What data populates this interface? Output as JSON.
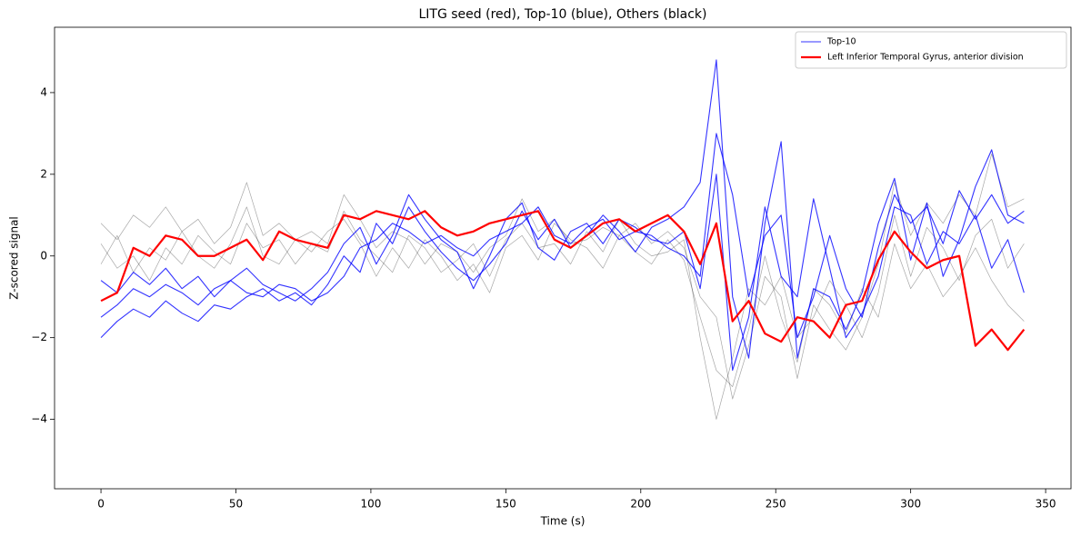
{
  "chart_data": {
    "type": "line",
    "title": "LITG seed (red), Top-10 (blue), Others (black)",
    "xlabel": "Time (s)",
    "ylabel": "Z-scored signal",
    "xlim": [
      -17.2,
      359.4
    ],
    "ylim": [
      -5.7,
      5.6
    ],
    "xticks": [
      0,
      50,
      100,
      150,
      200,
      250,
      300,
      350
    ],
    "yticks": [
      {
        "value": -4,
        "label": "−4"
      },
      {
        "value": -2,
        "label": "−2"
      },
      0,
      2,
      4
    ],
    "legend": "upper right",
    "x": [
      0,
      6,
      12,
      18,
      24,
      30,
      36,
      42,
      48,
      54,
      60,
      66,
      72,
      78,
      84,
      90,
      96,
      102,
      108,
      114,
      120,
      126,
      132,
      138,
      144,
      150,
      156,
      162,
      168,
      174,
      180,
      186,
      192,
      198,
      204,
      210,
      216,
      222,
      228,
      234,
      240,
      246,
      252,
      258,
      264,
      270,
      276,
      282,
      288,
      294,
      300,
      306,
      312,
      318,
      324,
      330,
      336,
      342
    ],
    "series": [
      {
        "color": "rgba(0,0,0,0.35)",
        "linewidth": 0.7,
        "values": [
          0.8,
          0.4,
          1.0,
          0.7,
          1.2,
          0.6,
          0.9,
          0.3,
          0.7,
          1.8,
          0.5,
          0.8,
          0.4,
          0.6,
          0.3,
          1.5,
          0.9,
          0.2,
          0.6,
          0.4,
          -0.2,
          0.3,
          0.1,
          -0.4,
          0.2,
          0.5,
          1.4,
          0.6,
          0.9,
          0.3,
          0.4,
          0.7,
          0.5,
          0.8,
          0.3,
          0.6,
          0.2,
          -1.0,
          -1.5,
          -3.5,
          -2.2,
          -0.5,
          -1.0,
          -3.0,
          -1.2,
          -1.8,
          -2.3,
          -1.5,
          -0.2,
          1.8,
          0.5,
          1.3,
          0.8,
          1.5,
          1.0,
          2.5,
          1.2,
          1.4
        ]
      },
      {
        "color": "rgba(0,0,0,0.35)",
        "linewidth": 0.7,
        "values": [
          -0.2,
          0.5,
          -0.4,
          0.2,
          -0.1,
          0.6,
          0.0,
          -0.3,
          0.3,
          1.2,
          0.0,
          -0.2,
          0.4,
          0.1,
          0.6,
          0.9,
          0.3,
          -0.5,
          0.2,
          -0.3,
          0.4,
          0.0,
          -0.6,
          -0.2,
          -0.9,
          0.2,
          0.5,
          -0.1,
          0.8,
          0.4,
          0.2,
          -0.3,
          0.5,
          0.1,
          -0.2,
          0.4,
          -0.1,
          -1.5,
          -2.8,
          -3.2,
          -1.8,
          0.0,
          -1.5,
          -2.6,
          -0.8,
          -1.2,
          -1.9,
          -0.8,
          -1.5,
          0.3,
          -0.8,
          -0.2,
          -1.0,
          -0.5,
          0.2,
          -0.6,
          -1.2,
          -1.6
        ]
      },
      {
        "color": "rgba(0,0,0,0.35)",
        "linewidth": 0.7,
        "values": [
          0.3,
          -0.3,
          0.0,
          -0.6,
          0.2,
          -0.2,
          0.5,
          0.1,
          -0.2,
          0.8,
          0.2,
          0.4,
          -0.2,
          0.3,
          0.1,
          1.1,
          0.4,
          0.0,
          -0.4,
          0.5,
          0.2,
          -0.4,
          -0.1,
          0.3,
          -0.5,
          0.4,
          0.8,
          0.2,
          0.3,
          -0.2,
          0.6,
          0.1,
          0.9,
          0.3,
          0.0,
          0.1,
          0.4,
          -2.0,
          -4.0,
          -2.5,
          -0.8,
          -1.2,
          -0.5,
          -2.0,
          -1.5,
          -0.6,
          -1.2,
          -2.0,
          -0.9,
          1.0,
          -0.5,
          0.7,
          0.2,
          -0.6,
          0.5,
          0.9,
          -0.3,
          0.3
        ]
      },
      {
        "name": "Top-10",
        "color": "rgba(0,0,255,0.8)",
        "linewidth": 1.1,
        "values": [
          -1.5,
          -1.2,
          -0.8,
          -1.0,
          -0.7,
          -0.9,
          -1.2,
          -0.8,
          -0.6,
          -0.9,
          -1.0,
          -0.7,
          -0.8,
          -1.1,
          -0.9,
          -0.5,
          0.2,
          0.4,
          0.8,
          0.6,
          0.3,
          0.5,
          0.2,
          0.0,
          0.4,
          0.6,
          0.8,
          1.2,
          0.5,
          0.3,
          0.7,
          0.9,
          0.4,
          0.6,
          0.5,
          0.2,
          0.0,
          -0.5,
          3.0,
          1.5,
          -1.0,
          0.5,
          1.0,
          -2.0,
          -1.0,
          0.5,
          -0.8,
          -1.5,
          0.2,
          1.5,
          0.8,
          1.2,
          0.3,
          1.6,
          0.9,
          1.5,
          0.8,
          1.1
        ]
      },
      {
        "color": "rgba(0,0,255,0.8)",
        "linewidth": 1.1,
        "values": [
          -2.0,
          -1.6,
          -1.3,
          -1.5,
          -1.1,
          -1.4,
          -1.6,
          -1.2,
          -1.3,
          -1.0,
          -0.8,
          -1.1,
          -0.9,
          -1.2,
          -0.7,
          0.0,
          -0.4,
          0.8,
          0.3,
          1.2,
          0.6,
          0.1,
          -0.3,
          -0.6,
          -0.2,
          0.3,
          1.1,
          0.4,
          0.9,
          0.2,
          0.5,
          1.0,
          0.6,
          0.1,
          0.7,
          0.9,
          1.2,
          1.8,
          4.8,
          -1.0,
          -2.5,
          0.8,
          2.8,
          -2.5,
          -0.8,
          -1.0,
          -1.8,
          -0.9,
          0.8,
          1.9,
          -0.1,
          1.3,
          -0.5,
          0.4,
          1.7,
          2.6,
          1.0,
          0.8
        ]
      },
      {
        "color": "rgba(0,0,255,0.8)",
        "linewidth": 1.1,
        "values": [
          -0.6,
          -0.9,
          -0.4,
          -0.7,
          -0.3,
          -0.8,
          -0.5,
          -1.0,
          -0.6,
          -0.3,
          -0.7,
          -0.9,
          -1.1,
          -0.8,
          -0.4,
          0.3,
          0.7,
          -0.2,
          0.5,
          1.5,
          0.9,
          0.4,
          0.1,
          -0.8,
          0.0,
          0.9,
          1.3,
          0.2,
          -0.1,
          0.6,
          0.8,
          0.3,
          0.9,
          0.7,
          0.4,
          0.3,
          0.6,
          -0.8,
          2.0,
          -2.8,
          -1.5,
          1.2,
          -0.5,
          -1.0,
          1.4,
          -0.3,
          -2.0,
          -1.4,
          -0.5,
          1.2,
          1.0,
          -0.2,
          0.6,
          0.3,
          1.0,
          -0.3,
          0.4,
          -0.9
        ]
      },
      {
        "name": "Left Inferior Temporal Gyrus, anterior division",
        "color": "#ff0000",
        "linewidth": 2.2,
        "values": [
          -1.1,
          -0.9,
          0.2,
          0.0,
          0.5,
          0.4,
          0.0,
          0.0,
          0.2,
          0.4,
          -0.1,
          0.6,
          0.4,
          0.3,
          0.2,
          1.0,
          0.9,
          1.1,
          1.0,
          0.9,
          1.1,
          0.7,
          0.5,
          0.6,
          0.8,
          0.9,
          1.0,
          1.1,
          0.4,
          0.2,
          0.5,
          0.8,
          0.9,
          0.6,
          0.8,
          1.0,
          0.6,
          -0.2,
          0.8,
          -1.6,
          -1.1,
          -1.9,
          -2.1,
          -1.5,
          -1.6,
          -2.0,
          -1.2,
          -1.1,
          -0.1,
          0.6,
          0.1,
          -0.3,
          -0.1,
          0.0,
          -2.2,
          -1.8,
          -2.3,
          -1.8
        ]
      }
    ]
  }
}
